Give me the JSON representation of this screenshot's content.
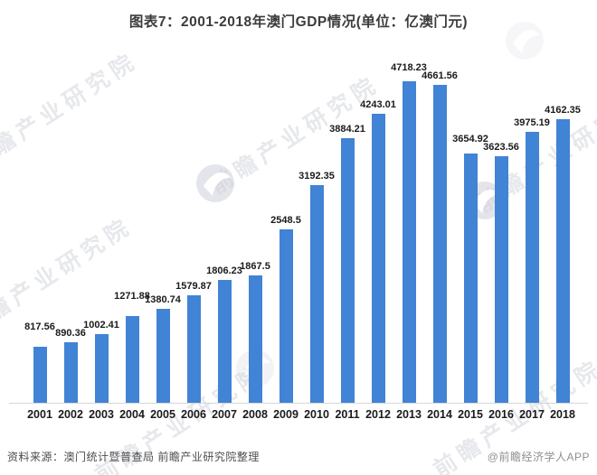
{
  "title": "图表7：2001-2018年澳门GDP情况(单位：亿澳门元)",
  "source_note": "资料来源：澳门统计暨普查局 前瞻产业研究院整理",
  "app_credit": "@前瞻经济学人APP",
  "watermark": {
    "brand_text": "前瞻产业研究院"
  },
  "colors": {
    "bar": "#4183d5",
    "title_text": "#3c3c3c",
    "data_label": "#1a1a1a",
    "axis_line": "#d6d6d6",
    "source_text": "#4d4d4d",
    "credit_text": "#8f8f8f",
    "watermark": "#b7bcc7"
  },
  "chart_data": {
    "type": "bar",
    "title": "图表7：2001-2018年澳门GDP情况(单位：亿澳门元)",
    "xlabel": "",
    "ylabel": "",
    "unit": "亿澳门元",
    "categories": [
      "2001",
      "2002",
      "2003",
      "2004",
      "2005",
      "2006",
      "2007",
      "2008",
      "2009",
      "2010",
      "2011",
      "2012",
      "2013",
      "2014",
      "2015",
      "2016",
      "2017",
      "2018"
    ],
    "values": [
      817.56,
      890.36,
      1002.41,
      1271.88,
      1380.74,
      1579.87,
      1806.23,
      1867.5,
      2548.5,
      3192.35,
      3884.21,
      4243.01,
      4718.23,
      4661.56,
      3654.92,
      3623.56,
      3975.19,
      4162.35
    ],
    "ylim": [
      0,
      5000
    ],
    "grid": false,
    "legend": false,
    "data_labels": true,
    "bar_color": "#4183d5"
  }
}
